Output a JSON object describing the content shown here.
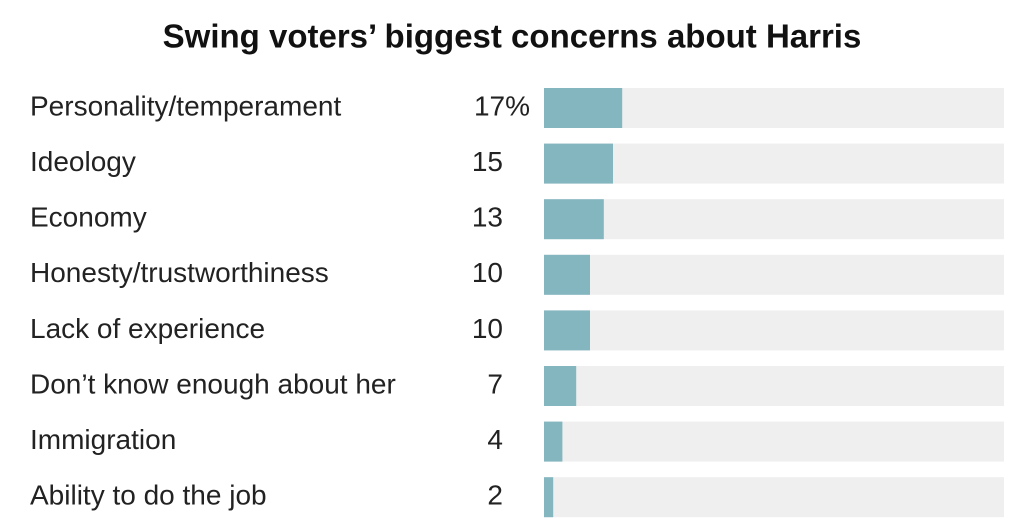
{
  "chart_data": {
    "type": "bar",
    "orientation": "horizontal",
    "title": "Swing voters’ biggest concerns about Harris",
    "categories": [
      "Personality/temperament",
      "Ideology",
      "Economy",
      "Honesty/trustworthiness",
      "Lack of experience",
      "Don’t know enough about her",
      "Immigration",
      "Ability to do the job"
    ],
    "values": [
      17,
      15,
      13,
      10,
      10,
      7,
      4,
      2
    ],
    "value_labels": [
      "17%",
      "15",
      "13",
      "10",
      "10",
      "7",
      "4",
      "2"
    ],
    "color": "#84b6bf",
    "xlim": [
      0,
      100
    ]
  }
}
